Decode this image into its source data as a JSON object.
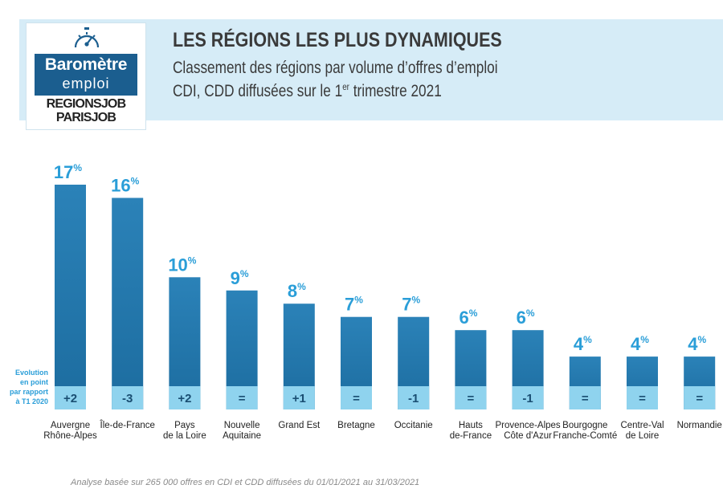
{
  "header": {
    "title": "LES RÉGIONS LES PLUS DYNAMIQUES",
    "subtitle_line1": "Classement des régions par volume d’offres d’emploi",
    "subtitle_line2_prefix": "CDI, CDD diffusées sur le 1",
    "subtitle_line2_sup": "er",
    "subtitle_line2_suffix": " trimestre 2021"
  },
  "logo": {
    "line1": "Baromètre",
    "line2": "emploi",
    "line3": "REGIONSJOB",
    "line4": "PARISJOB",
    "icon": "gauge-icon"
  },
  "colors": {
    "bar": "#1c6c9f",
    "bar_light": "#2b82b8",
    "value_label": "#2a9ed8",
    "evolution_box": "#8fd3ee",
    "banner": "#d6ecf7",
    "logo_blue": "#1b5e8f"
  },
  "evolution_label": [
    "Evolution",
    "en point",
    "par rapport",
    "à T1 2020"
  ],
  "chart_data": {
    "type": "bar",
    "categories": [
      [
        "Auvergne",
        "Rhône-Alpes"
      ],
      [
        "Île-de-France"
      ],
      [
        "Pays",
        "de la Loire"
      ],
      [
        "Nouvelle",
        "Aquitaine"
      ],
      [
        "Grand Est"
      ],
      [
        "Bretagne"
      ],
      [
        "Occitanie"
      ],
      [
        "Hauts",
        "de-France"
      ],
      [
        "Provence-Alpes",
        "Côte d'Azur"
      ],
      [
        "Bourgogne",
        "Franche-Comté"
      ],
      [
        "Centre-Val",
        "de Loire"
      ],
      [
        "Normandie"
      ]
    ],
    "values": [
      17,
      16,
      10,
      9,
      8,
      7,
      7,
      6,
      6,
      4,
      4,
      4
    ],
    "value_suffix": "%",
    "evolution": [
      "+2",
      "-3",
      "+2",
      "=",
      "+1",
      "=",
      "-1",
      "=",
      "-1",
      "=",
      "=",
      "="
    ],
    "ylim": [
      0,
      17
    ],
    "grid": false,
    "legend": "none"
  },
  "footnote": "Analyse basée sur 265 000 offres en CDI et CDD diffusées du 01/01/2021 au 31/03/2021"
}
